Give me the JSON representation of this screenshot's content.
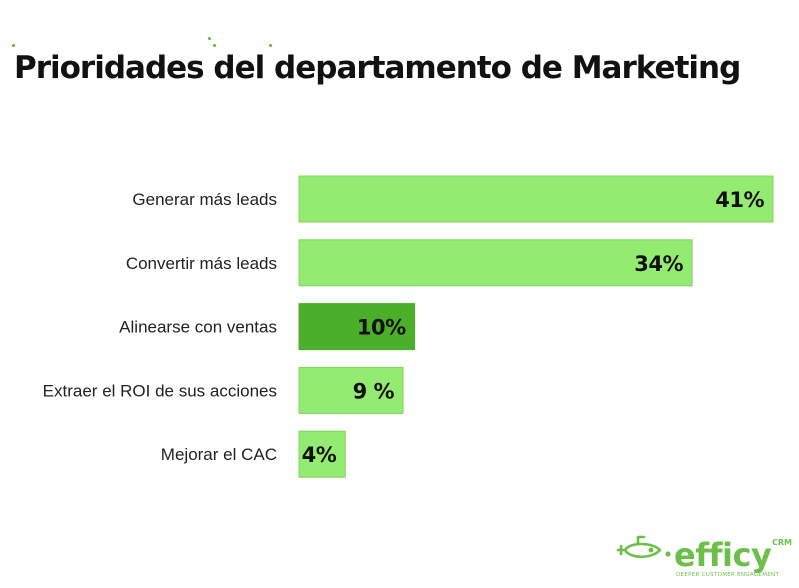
{
  "title": "Prioridades del departamento de Marketing",
  "chart_data": {
    "type": "bar",
    "orientation": "horizontal",
    "title": "Prioridades del departamento de Marketing",
    "xlabel": "",
    "ylabel": "",
    "xlim": [
      0,
      41
    ],
    "grid": false,
    "categories": [
      "Generar más leads",
      "Convertir más leads",
      "Alinearse con ventas",
      "Extraer el ROI de sus acciones",
      "Mejorar el CAC"
    ],
    "values": [
      41,
      34,
      10,
      9,
      4
    ],
    "value_labels": [
      "41%",
      "34%",
      "10%",
      "9 %",
      "4%"
    ],
    "highlight_index": 2,
    "colors": {
      "bar": "#94eb71",
      "bar_highlight": "#4caf2a",
      "bar_border": "#7fd45e"
    }
  },
  "logo": {
    "wordmark": "efficy",
    "superscript": "CRM",
    "tagline": "DEEPER CUSTOMER ENGAGEMENT",
    "icon": "submarine-icon",
    "color": "#6cc04a"
  }
}
